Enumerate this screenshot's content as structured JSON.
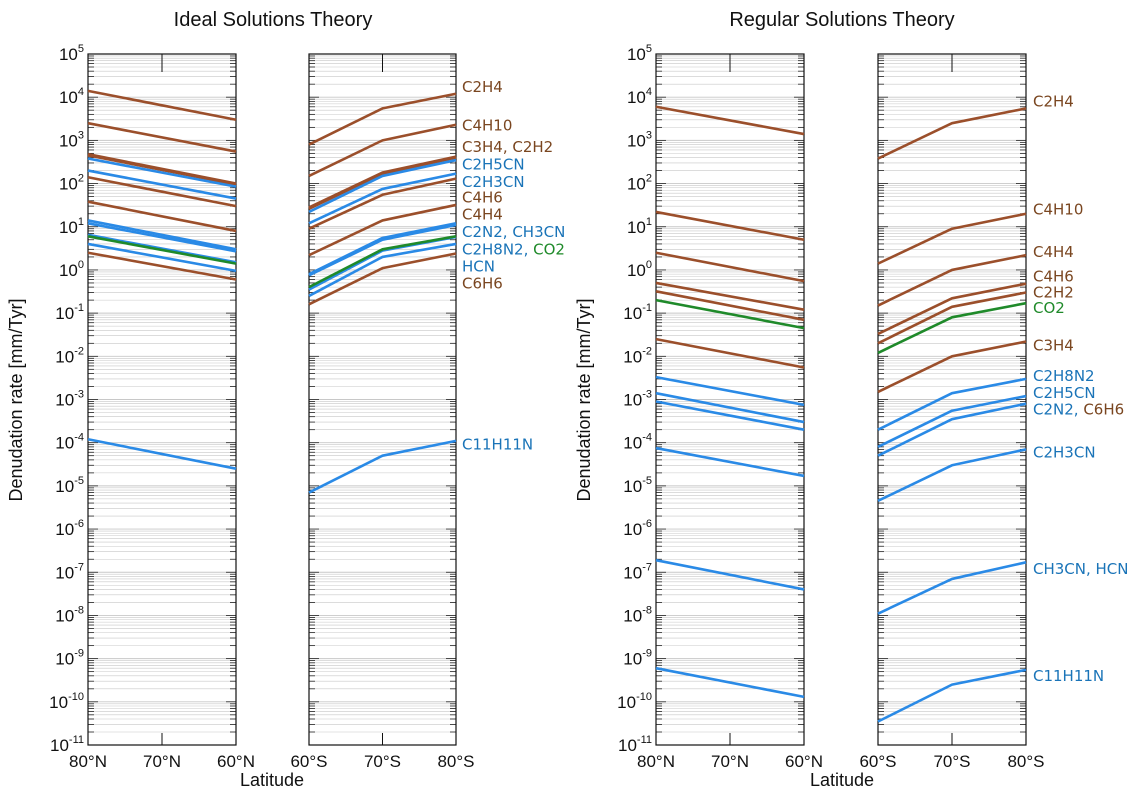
{
  "colors": {
    "brown": "#9b4f2b",
    "blue": "#2a8ae6",
    "green": "#1f8a2a",
    "grid": "#c8c8c8",
    "label_brown": "#7a4620",
    "label_blue": "#1a74b8",
    "label_green": "#1f8a2a"
  },
  "chart_data": [
    {
      "type": "line",
      "title": "Ideal Solutions Theory",
      "xlabel": "Latitude",
      "ylabel": "Denudation rate [mm/Tyr]",
      "yscale": "log",
      "ylim": [
        1e-11,
        100000.0
      ],
      "ytick_labels": [
        "10^-11",
        "10^-10",
        "10^-9",
        "10^-8",
        "10^-7",
        "10^-6",
        "10^-5",
        "10^-4",
        "10^-3",
        "10^-2",
        "10^-1",
        "10^0",
        "10^1",
        "10^2",
        "10^3",
        "10^4",
        "10^5"
      ],
      "north_ticks": [
        "80°N",
        "70°N",
        "60°N"
      ],
      "south_ticks": [
        "60°S",
        "70°S",
        "80°S"
      ],
      "series": [
        {
          "color": "brown",
          "north": [
            14000,
            3000
          ],
          "south": [
            800,
            5500,
            12000
          ]
        },
        {
          "color": "brown",
          "north": [
            2500,
            550
          ],
          "south": [
            150,
            1000,
            2300
          ]
        },
        {
          "color": "brown",
          "north": [
            480,
            100
          ],
          "south": [
            28,
            180,
            420
          ]
        },
        {
          "color": "brown",
          "north": [
            450,
            95
          ],
          "south": [
            26,
            170,
            400
          ]
        },
        {
          "color": "blue",
          "north": [
            380,
            85
          ],
          "south": [
            22,
            150,
            350
          ]
        },
        {
          "color": "blue",
          "north": [
            200,
            45
          ],
          "south": [
            12,
            75,
            170
          ]
        },
        {
          "color": "brown",
          "north": [
            140,
            30
          ],
          "south": [
            9,
            55,
            130
          ]
        },
        {
          "color": "brown",
          "north": [
            38,
            8
          ],
          "south": [
            2.2,
            14,
            32
          ]
        },
        {
          "color": "blue",
          "north": [
            14,
            3
          ],
          "south": [
            0.8,
            5.5,
            12
          ]
        },
        {
          "color": "blue",
          "north": [
            12,
            2.7
          ],
          "south": [
            0.75,
            5,
            11
          ]
        },
        {
          "color": "blue",
          "north": [
            6.5,
            1.5
          ],
          "south": [
            0.35,
            2.8,
            5.8
          ]
        },
        {
          "color": "green",
          "north": [
            6,
            1.4
          ],
          "south": [
            0.4,
            3,
            6
          ]
        },
        {
          "color": "blue",
          "north": [
            4,
            0.95
          ],
          "south": [
            0.25,
            2,
            4
          ]
        },
        {
          "color": "brown",
          "north": [
            2.5,
            0.6
          ],
          "south": [
            0.16,
            1.1,
            2.4
          ]
        },
        {
          "color": "blue",
          "north": [
            0.00012,
            2.5e-05
          ],
          "south": [
            7e-06,
            5e-05,
            0.00011
          ]
        }
      ],
      "annotations": [
        {
          "parts": [
            {
              "text": "C2H4",
              "color": "brown"
            }
          ],
          "y": 17000
        },
        {
          "parts": [
            {
              "text": "C4H10",
              "color": "brown"
            }
          ],
          "y": 2200
        },
        {
          "parts": [
            {
              "text": "C3H4, C2H2",
              "color": "brown"
            }
          ],
          "y": 700
        },
        {
          "parts": [
            {
              "text": "C2H5CN",
              "color": "blue"
            }
          ],
          "y": 280
        },
        {
          "parts": [
            {
              "text": "C2H3CN",
              "color": "blue"
            }
          ],
          "y": 110
        },
        {
          "parts": [
            {
              "text": "C4H6",
              "color": "brown"
            }
          ],
          "y": 48
        },
        {
          "parts": [
            {
              "text": "C4H4",
              "color": "brown"
            }
          ],
          "y": 19
        },
        {
          "parts": [
            {
              "text": "C2N2, CH3CN",
              "color": "blue"
            }
          ],
          "y": 7.5
        },
        {
          "parts": [
            {
              "text": "C2H8N2, ",
              "color": "blue"
            },
            {
              "text": "CO2",
              "color": "green"
            }
          ],
          "y": 3
        },
        {
          "parts": [
            {
              "text": "HCN",
              "color": "blue"
            }
          ],
          "y": 1.2
        },
        {
          "parts": [
            {
              "text": "C6H6",
              "color": "brown"
            }
          ],
          "y": 0.48
        },
        {
          "parts": [
            {
              "text": "C11H11N",
              "color": "blue"
            }
          ],
          "y": 9e-05
        }
      ]
    },
    {
      "type": "line",
      "title": "Regular Solutions Theory",
      "xlabel": "Latitude",
      "ylabel": "Denudation rate [mm/Tyr]",
      "yscale": "log",
      "ylim": [
        1e-11,
        100000.0
      ],
      "ytick_labels": [
        "10^-11",
        "10^-10",
        "10^-9",
        "10^-8",
        "10^-7",
        "10^-6",
        "10^-5",
        "10^-4",
        "10^-3",
        "10^-2",
        "10^-1",
        "10^0",
        "10^1",
        "10^2",
        "10^3",
        "10^4",
        "10^5"
      ],
      "north_ticks": [
        "80°N",
        "70°N",
        "60°N"
      ],
      "south_ticks": [
        "60°S",
        "70°S",
        "80°S"
      ],
      "series": [
        {
          "color": "brown",
          "north": [
            6000,
            1400
          ],
          "south": [
            380,
            2500,
            5500
          ]
        },
        {
          "color": "brown",
          "north": [
            22,
            5
          ],
          "south": [
            1.4,
            9,
            20
          ]
        },
        {
          "color": "brown",
          "north": [
            2.5,
            0.55
          ],
          "south": [
            0.15,
            1,
            2.2
          ]
        },
        {
          "color": "brown",
          "north": [
            0.5,
            0.12
          ],
          "south": [
            0.033,
            0.22,
            0.48
          ]
        },
        {
          "color": "brown",
          "north": [
            0.32,
            0.07
          ],
          "south": [
            0.02,
            0.14,
            0.3
          ]
        },
        {
          "color": "green",
          "north": [
            0.2,
            0.045
          ],
          "south": [
            0.012,
            0.08,
            0.17
          ]
        },
        {
          "color": "brown",
          "north": [
            0.025,
            0.0055
          ],
          "south": [
            0.0015,
            0.01,
            0.022
          ]
        },
        {
          "color": "blue",
          "north": [
            0.0033,
            0.00075
          ],
          "south": [
            0.0002,
            0.0014,
            0.003
          ]
        },
        {
          "color": "blue",
          "north": [
            0.0014,
            0.0003
          ],
          "south": [
            8e-05,
            0.00055,
            0.0012
          ]
        },
        {
          "color": "blue",
          "north": [
            0.0009,
            0.0002
          ],
          "south": [
            5e-05,
            0.00035,
            0.0008
          ]
        },
        {
          "color": "blue",
          "north": [
            7.5e-05,
            1.7e-05
          ],
          "south": [
            4.5e-06,
            3e-05,
            7e-05
          ]
        },
        {
          "color": "blue",
          "north": [
            1.9e-07,
            4e-08
          ],
          "south": [
            1.1e-08,
            7e-08,
            1.7e-07
          ]
        },
        {
          "color": "blue",
          "north": [
            6e-10,
            1.3e-10
          ],
          "south": [
            3.5e-11,
            2.5e-10,
            5.5e-10
          ]
        }
      ],
      "annotations": [
        {
          "parts": [
            {
              "text": "C2H4",
              "color": "brown"
            }
          ],
          "y": 8000
        },
        {
          "parts": [
            {
              "text": "C4H10",
              "color": "brown"
            }
          ],
          "y": 25
        },
        {
          "parts": [
            {
              "text": "C4H4",
              "color": "brown"
            }
          ],
          "y": 2.6
        },
        {
          "parts": [
            {
              "text": "C4H6",
              "color": "brown"
            }
          ],
          "y": 0.7
        },
        {
          "parts": [
            {
              "text": "C2H2",
              "color": "brown"
            }
          ],
          "y": 0.3
        },
        {
          "parts": [
            {
              "text": "CO2",
              "color": "green"
            }
          ],
          "y": 0.13
        },
        {
          "parts": [
            {
              "text": "C3H4",
              "color": "brown"
            }
          ],
          "y": 0.018
        },
        {
          "parts": [
            {
              "text": "C2H8N2",
              "color": "blue"
            }
          ],
          "y": 0.0035
        },
        {
          "parts": [
            {
              "text": "C2H5CN",
              "color": "blue"
            }
          ],
          "y": 0.0014
        },
        {
          "parts": [
            {
              "text": "C2N2, ",
              "color": "blue"
            },
            {
              "text": "C6H6",
              "color": "brown"
            }
          ],
          "y": 0.00058
        },
        {
          "parts": [
            {
              "text": "C2H3CN",
              "color": "blue"
            }
          ],
          "y": 6e-05
        },
        {
          "parts": [
            {
              "text": "CH3CN, HCN",
              "color": "blue"
            }
          ],
          "y": 1.2e-07
        },
        {
          "parts": [
            {
              "text": "C11H11N",
              "color": "blue"
            }
          ],
          "y": 4e-10
        }
      ]
    }
  ]
}
